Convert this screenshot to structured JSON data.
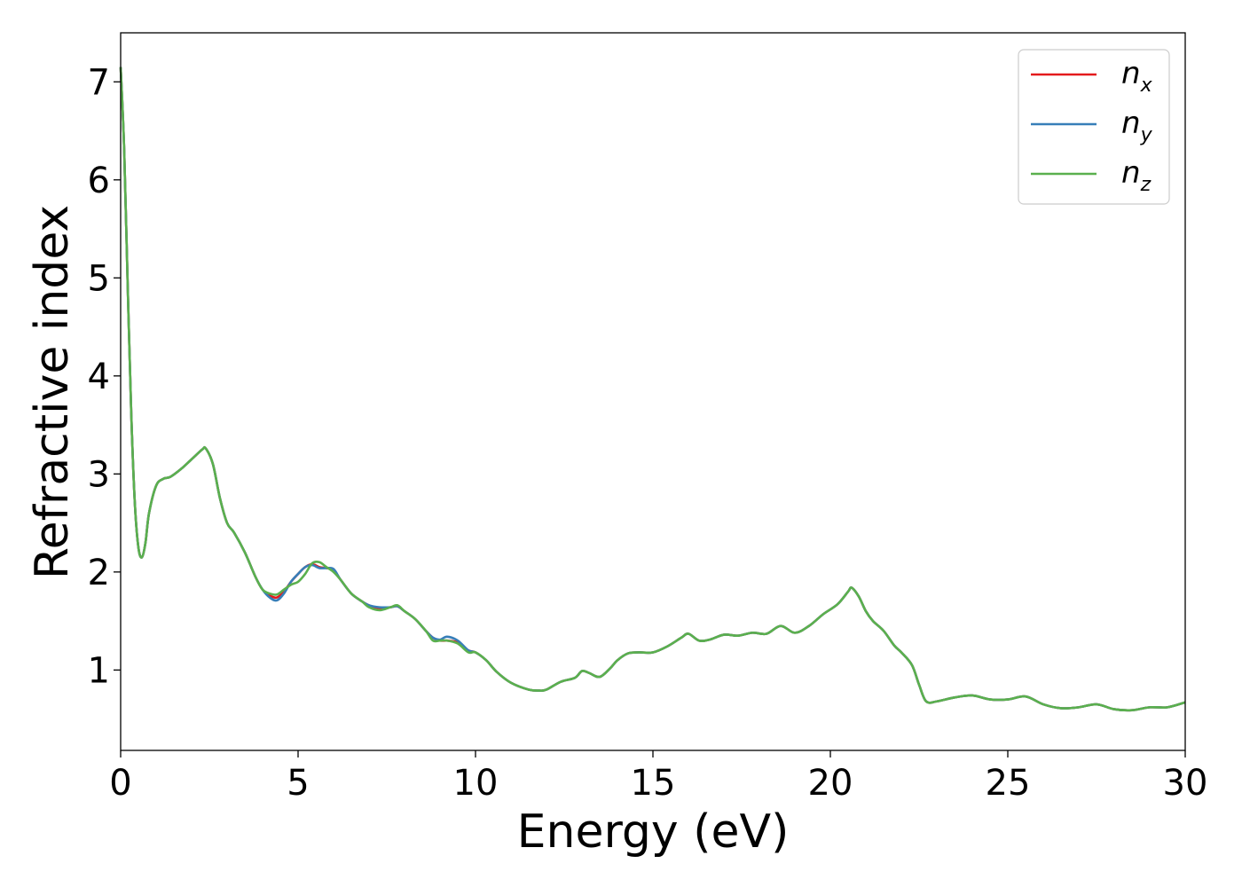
{
  "chart_data": {
    "type": "line",
    "title": "",
    "xlabel": "Energy (eV)",
    "ylabel": "Refractive index",
    "xlim": [
      0,
      30
    ],
    "ylim": [
      0.18,
      7.5
    ],
    "xticks": [
      0,
      5,
      10,
      15,
      20,
      25,
      30
    ],
    "yticks": [
      1,
      2,
      3,
      4,
      5,
      6,
      7
    ],
    "grid": false,
    "legend_position": "top-right",
    "series": [
      {
        "name": "n_x",
        "label_base": "n",
        "label_sub": "x",
        "color": "#e41a1c",
        "x": [
          0,
          0.1,
          0.2,
          0.3,
          0.4,
          0.5,
          0.6,
          0.7,
          0.8,
          1.0,
          1.2,
          1.4,
          1.7,
          2.0,
          2.3,
          2.4,
          2.6,
          2.8,
          3.0,
          3.2,
          3.5,
          3.8,
          4.0,
          4.2,
          4.4,
          4.6,
          4.8,
          5.0,
          5.2,
          5.4,
          5.6,
          5.8,
          6.0,
          6.2,
          6.5,
          6.8,
          7.0,
          7.3,
          7.6,
          7.8,
          8.0,
          8.3,
          8.6,
          8.8,
          9.0,
          9.2,
          9.5,
          9.8,
          10.0,
          10.3,
          10.6,
          11.0,
          11.5,
          11.8,
          12.0,
          12.4,
          12.8,
          13.0,
          13.2,
          13.5,
          13.8,
          14.0,
          14.3,
          14.6,
          15.0,
          15.4,
          15.8,
          16.0,
          16.3,
          16.6,
          17.0,
          17.4,
          17.8,
          18.2,
          18.6,
          19.0,
          19.4,
          19.8,
          20.2,
          20.5,
          20.6,
          20.8,
          21.0,
          21.2,
          21.5,
          21.8,
          22.0,
          22.3,
          22.5,
          22.7,
          23.0,
          23.5,
          24.0,
          24.5,
          25.0,
          25.5,
          26.0,
          26.5,
          27.0,
          27.5,
          28.0,
          28.5,
          29.0,
          29.5,
          30.0
        ],
        "y": [
          7.15,
          6.3,
          4.9,
          3.6,
          2.7,
          2.25,
          2.15,
          2.3,
          2.6,
          2.88,
          2.95,
          2.97,
          3.05,
          3.15,
          3.25,
          3.26,
          3.1,
          2.75,
          2.5,
          2.4,
          2.2,
          1.95,
          1.82,
          1.76,
          1.74,
          1.8,
          1.9,
          1.98,
          2.05,
          2.08,
          2.05,
          2.04,
          2.02,
          1.92,
          1.78,
          1.7,
          1.66,
          1.63,
          1.64,
          1.65,
          1.6,
          1.52,
          1.4,
          1.33,
          1.3,
          1.3,
          1.28,
          1.2,
          1.18,
          1.1,
          0.98,
          0.87,
          0.8,
          0.79,
          0.8,
          0.88,
          0.92,
          0.99,
          0.97,
          0.93,
          1.02,
          1.1,
          1.17,
          1.18,
          1.18,
          1.24,
          1.33,
          1.37,
          1.3,
          1.31,
          1.36,
          1.35,
          1.38,
          1.37,
          1.45,
          1.38,
          1.45,
          1.57,
          1.67,
          1.8,
          1.84,
          1.75,
          1.6,
          1.5,
          1.4,
          1.25,
          1.18,
          1.05,
          0.85,
          0.68,
          0.68,
          0.72,
          0.74,
          0.7,
          0.7,
          0.73,
          0.65,
          0.61,
          0.62,
          0.65,
          0.6,
          0.59,
          0.62,
          0.62,
          0.67
        ]
      },
      {
        "name": "n_y",
        "label_base": "n",
        "label_sub": "y",
        "color": "#377eb8",
        "x": [
          0,
          0.1,
          0.2,
          0.3,
          0.4,
          0.5,
          0.6,
          0.7,
          0.8,
          1.0,
          1.2,
          1.4,
          1.7,
          2.0,
          2.3,
          2.4,
          2.6,
          2.8,
          3.0,
          3.2,
          3.5,
          3.8,
          4.0,
          4.2,
          4.4,
          4.6,
          4.8,
          5.0,
          5.2,
          5.4,
          5.6,
          5.8,
          6.0,
          6.2,
          6.5,
          6.8,
          7.0,
          7.3,
          7.6,
          7.8,
          8.0,
          8.3,
          8.6,
          8.8,
          9.0,
          9.2,
          9.5,
          9.8,
          10.0,
          10.3,
          10.6,
          11.0,
          11.5,
          11.8,
          12.0,
          12.4,
          12.8,
          13.0,
          13.2,
          13.5,
          13.8,
          14.0,
          14.3,
          14.6,
          15.0,
          15.4,
          15.8,
          16.0,
          16.3,
          16.6,
          17.0,
          17.4,
          17.8,
          18.2,
          18.6,
          19.0,
          19.4,
          19.8,
          20.2,
          20.5,
          20.6,
          20.8,
          21.0,
          21.2,
          21.5,
          21.8,
          22.0,
          22.3,
          22.5,
          22.7,
          23.0,
          23.5,
          24.0,
          24.5,
          25.0,
          25.5,
          26.0,
          26.5,
          27.0,
          27.5,
          28.0,
          28.5,
          29.0,
          29.5,
          30.0
        ],
        "y": [
          7.15,
          6.3,
          4.9,
          3.6,
          2.7,
          2.25,
          2.15,
          2.3,
          2.6,
          2.88,
          2.95,
          2.97,
          3.05,
          3.15,
          3.25,
          3.26,
          3.1,
          2.75,
          2.5,
          2.4,
          2.2,
          1.95,
          1.82,
          1.74,
          1.71,
          1.78,
          1.9,
          1.98,
          2.05,
          2.07,
          2.04,
          2.04,
          2.03,
          1.92,
          1.78,
          1.7,
          1.66,
          1.64,
          1.64,
          1.65,
          1.6,
          1.52,
          1.4,
          1.33,
          1.31,
          1.34,
          1.3,
          1.2,
          1.18,
          1.1,
          0.98,
          0.87,
          0.8,
          0.79,
          0.8,
          0.88,
          0.92,
          0.99,
          0.97,
          0.93,
          1.02,
          1.1,
          1.17,
          1.18,
          1.18,
          1.24,
          1.33,
          1.37,
          1.3,
          1.31,
          1.36,
          1.35,
          1.38,
          1.37,
          1.45,
          1.38,
          1.45,
          1.57,
          1.67,
          1.8,
          1.84,
          1.75,
          1.6,
          1.5,
          1.4,
          1.25,
          1.18,
          1.05,
          0.85,
          0.68,
          0.68,
          0.72,
          0.74,
          0.7,
          0.7,
          0.73,
          0.65,
          0.61,
          0.62,
          0.65,
          0.6,
          0.59,
          0.62,
          0.62,
          0.67
        ]
      },
      {
        "name": "n_z",
        "label_base": "n",
        "label_sub": "z",
        "color": "#5ab04e",
        "x": [
          0,
          0.1,
          0.2,
          0.3,
          0.4,
          0.5,
          0.6,
          0.7,
          0.8,
          1.0,
          1.2,
          1.4,
          1.7,
          2.0,
          2.3,
          2.4,
          2.6,
          2.8,
          3.0,
          3.2,
          3.5,
          3.8,
          4.0,
          4.2,
          4.4,
          4.6,
          4.8,
          5.0,
          5.2,
          5.4,
          5.6,
          5.8,
          6.0,
          6.2,
          6.5,
          6.8,
          7.0,
          7.3,
          7.6,
          7.8,
          8.0,
          8.3,
          8.6,
          8.8,
          9.0,
          9.2,
          9.5,
          9.8,
          10.0,
          10.3,
          10.6,
          11.0,
          11.5,
          11.8,
          12.0,
          12.4,
          12.8,
          13.0,
          13.2,
          13.5,
          13.8,
          14.0,
          14.3,
          14.6,
          15.0,
          15.4,
          15.8,
          16.0,
          16.3,
          16.6,
          17.0,
          17.4,
          17.8,
          18.2,
          18.6,
          19.0,
          19.4,
          19.8,
          20.2,
          20.5,
          20.6,
          20.8,
          21.0,
          21.2,
          21.5,
          21.8,
          22.0,
          22.3,
          22.5,
          22.7,
          23.0,
          23.5,
          24.0,
          24.5,
          25.0,
          25.5,
          26.0,
          26.5,
          27.0,
          27.5,
          28.0,
          28.5,
          29.0,
          29.5,
          30.0
        ],
        "y": [
          7.15,
          6.3,
          4.9,
          3.6,
          2.7,
          2.25,
          2.15,
          2.3,
          2.6,
          2.88,
          2.95,
          2.97,
          3.05,
          3.15,
          3.25,
          3.26,
          3.1,
          2.75,
          2.5,
          2.4,
          2.2,
          1.95,
          1.82,
          1.78,
          1.77,
          1.82,
          1.87,
          1.9,
          1.98,
          2.09,
          2.1,
          2.05,
          2.0,
          1.92,
          1.78,
          1.7,
          1.64,
          1.61,
          1.64,
          1.66,
          1.6,
          1.52,
          1.4,
          1.3,
          1.3,
          1.3,
          1.27,
          1.18,
          1.18,
          1.1,
          0.98,
          0.87,
          0.8,
          0.79,
          0.8,
          0.88,
          0.92,
          0.99,
          0.97,
          0.93,
          1.02,
          1.1,
          1.17,
          1.18,
          1.18,
          1.24,
          1.33,
          1.37,
          1.3,
          1.31,
          1.36,
          1.35,
          1.38,
          1.37,
          1.45,
          1.38,
          1.45,
          1.57,
          1.67,
          1.8,
          1.84,
          1.75,
          1.6,
          1.5,
          1.4,
          1.25,
          1.18,
          1.05,
          0.85,
          0.68,
          0.68,
          0.72,
          0.74,
          0.7,
          0.7,
          0.73,
          0.65,
          0.61,
          0.62,
          0.65,
          0.6,
          0.59,
          0.62,
          0.62,
          0.67
        ]
      }
    ]
  }
}
